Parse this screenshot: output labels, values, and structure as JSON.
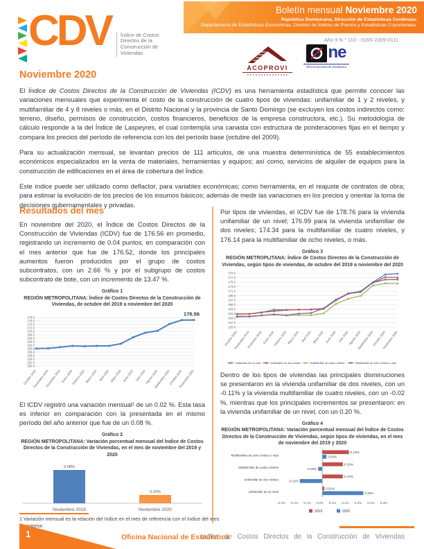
{
  "header": {
    "logo": {
      "acronym_rest": "CDV",
      "tagline": [
        "Índice de Costos",
        "Directos de la",
        "Construcción de",
        "Viviendas"
      ]
    },
    "banner": {
      "title_light": "Boletín mensual ",
      "title_bold": "Noviembre 2020",
      "line2": "República Dominicana, Dirección de Estadísticas Continuas.",
      "line3": "Departamento de Estadísticas Económicas, División de Índices de Precios y Estadísticas Coyunturales."
    },
    "issue": "Año 9 N.° 110 - ISSN 2309-0111",
    "partners": {
      "acoprovi": "ACOPROVI",
      "one_wordmark": "ne",
      "one_caption": "Oficina Nacional de Estadística"
    }
  },
  "doc": {
    "month_heading": "Noviembre 2020",
    "intro_p1_prefix": "El ",
    "intro_p1_italic": "Índice de Costos Directos de la Construcción de Viviendas (ICDV)",
    "intro_p1_rest": " es una herramienta estadística que permite conocer las variaciones mensuales que experimenta el costo de la construcción de cuatro tipos de viviendas: unifamiliar de 1 y 2 niveles, y multifamiliar de 4 y 8 niveles o más, en el Distrito Nacional y la provincia de Santo Domingo (se excluyen los costos indirectos como: terreno, diseño, permisos de construcción, costos financieros, beneficios de la empresa constructora, etc.). Su metodología de cálculo responde a la del Índice de Laspeyres, el cual contempla una canasta con estructura de ponderaciones fijas en el tiempo y compara los precios del período de referencia con los del período base (octubre del 2009).",
    "intro_p2": "Para su actualización mensual, se levantan precios de 111 artículos, de una muestra determinística de 55 establecimientos económicos especializados en la venta de materiales, herramientas y equipos; así como, servicios de alquiler de equipos para la construcción de edificaciones en el área de cobertura del Índice.",
    "intro_p3": "Este índice puede ser utilizado como deflactor, para variables económicas; como herramienta, en el reajuste de contratos de obra; para estimar la evolución de los precios de los insumos básicos; además de medir las variaciones en los precios y orientar la toma de decisiones gubernamentales y privadas.",
    "results_heading": "Resultados del mes",
    "left_p1": "En noviembre del 2020, el Índice de Costos Directos de la Construcción de Viviendas (ICDV) fue de 176.56 en promedio, registrando un incremento de 0.04 puntos, en comparación con el mes anterior que fue de 176.52, donde los principales aumentos fueron producidos por el grupo de costos subcontratos, con un 2.66 % y por el subgrupo de costos subcontrato de bote, con un incremento de 13.47 %.",
    "left_p2": "El ICDV registró una variación mensual¹ de un 0.02 %. Esta tasa es inferior en comparación con la presentada en el mismo período del año anterior que fue de un 0.08 %.",
    "right_p1": "Por tipos de viviendas, el ICDV fue de 178.76 para la vivienda unifamiliar de un nivel; 176.99 para la vivienda unifamiliar de dos niveles; 174.34 para la multifamiliar de cuatro niveles, y 176.14 para la multifamiliar de ocho niveles, o más.",
    "right_p2": "Dentro de los tipos de viviendas las principales disminuciones se presentaron en la vivienda unifamiliar de dos niveles, con un -0.11% y la vivienda multifamiliar de cuatro niveles, con un -0.02 %, mientras que los principales incrementos se presentaron: en la vivienda unifamiliar de un nivel, con un 0.20 %.",
    "footnote": "1  Variación mensual es la relación del índice en el mes de referencia con el índice del mes anterior."
  },
  "footer": {
    "page_number": "1",
    "left_text": "Oficina Nacional de Estadística",
    "right_text": "índice de Costos Directos de la Construcción de Viviendas"
  },
  "colors": {
    "accent": "#F47B20",
    "chart_blue": "#4F81BD",
    "chart_orange": "#F79646",
    "chart_red": "#C0504D",
    "chart_green": "#9BBB59",
    "chart_purple": "#8064A2"
  },
  "chart_data": [
    {
      "id": "chart1",
      "type": "line",
      "caption": "Gráfico 1",
      "title": "REGIÓN METROPOLITANA: Índice de Costos Directos de la Construcción de Viviendas, de octubre del 2019 a noviembre del 2020",
      "categories": [
        "Octubre 2019",
        "Noviembre 2019",
        "Diciembre 2019",
        "Enero 2020",
        "Febrero 2020",
        "Marzo 2020",
        "Abril 2020",
        "Mayo 2020",
        "Junio 2020",
        "Julio 2020",
        "Agosto 2020",
        "Septiembre 2020",
        "Octubre 2020",
        "Noviembre 2020"
      ],
      "series": [
        {
          "name": "ICDV",
          "color": "#4F81BD",
          "values": [
            160.1,
            160.2,
            160.9,
            161.6,
            161.4,
            161.6,
            161.6,
            162.9,
            166.6,
            169.2,
            170.3,
            174.3,
            176.5,
            176.56
          ]
        }
      ],
      "ylim": [
        150,
        178
      ],
      "ystep": 2,
      "last_point_label": "176.56",
      "legend_position": "none",
      "grid": true
    },
    {
      "id": "chart2",
      "type": "bar",
      "caption": "Gráfico 2",
      "title": "REGIÓN METROPOLITANA: Variación porcentual mensual del Índice de Costos Directos de la Construcción de Viviendas, en el mes de noviembre del 2019 y 2020",
      "categories": [
        "Noviembre 2019",
        "Noviembre 2020"
      ],
      "values": [
        0.08,
        0.02
      ],
      "value_labels": [
        "0.08%",
        "0.02%"
      ],
      "colors": [
        "#4F81BD",
        "#F79646"
      ],
      "ylim": [
        0,
        0.09
      ]
    },
    {
      "id": "chart3",
      "type": "line",
      "caption": "Gráfico 3",
      "title": "REGIÓN METROPLITANA: Índice de Costos Directos de la Construcción de Viviendas, según tipos de viviendas, de octubre del 2019 a noviembre del 2020",
      "categories": [
        "Octubre 2019",
        "Noviembre 2019",
        "Diciembre 2019",
        "Enero 2020",
        "Febrero 2020",
        "Marzo 2020",
        "Abril 2020",
        "Mayo 2020",
        "Junio 2020",
        "Julio 2020",
        "Agosto 2020",
        "Septiembre 2020",
        "Octubre 2020",
        "Noviembre 2020"
      ],
      "series": [
        {
          "name": "Unifamiliar de un nivel",
          "color": "#4F81BD",
          "values": [
            160.9,
            160.9,
            161.5,
            162.8,
            162.7,
            162.8,
            162.9,
            163.3,
            167.2,
            170.0,
            170.9,
            175.0,
            178.4,
            178.76
          ]
        },
        {
          "name": "Unifamiliar de dos niveles",
          "color": "#C0504D",
          "values": [
            160.8,
            160.9,
            161.6,
            162.1,
            162.6,
            162.8,
            162.8,
            163.1,
            166.9,
            169.8,
            170.8,
            174.7,
            177.2,
            176.99
          ]
        },
        {
          "name": "Multifamiliar de cuatro niveles",
          "color": "#9BBB59",
          "values": [
            159.9,
            159.9,
            160.3,
            160.5,
            160.2,
            160.4,
            160.3,
            161.1,
            165.3,
            167.6,
            168.9,
            173.5,
            174.4,
            174.34
          ]
        },
        {
          "name": "Multifamiliar de ocho niveles o más",
          "color": "#8064A2",
          "values": [
            159.6,
            159.7,
            160.2,
            160.7,
            160.3,
            161.0,
            161.3,
            163.3,
            167.2,
            169.9,
            170.6,
            174.8,
            176.1,
            176.14
          ]
        }
      ],
      "ylim": [
        155,
        179
      ],
      "ystep": 2,
      "legend_position": "bottom",
      "grid": true
    },
    {
      "id": "chart4",
      "type": "hbar",
      "caption": "Gráfico 4",
      "title": "REGIÓN METROPOLITANA: Variación porcentual mensual del Índice de Costos Directos de la Construcción de Viviendas, según tipos de viviendas, en el mes de noviembre del 2019 y 2020",
      "categories": [
        "Multifamiliar de ocho niveles o más",
        "Multifamiliar de cuatro niveles",
        "Unifamiliar de dos niveles",
        "Unifamiliar de un nivel"
      ],
      "series": [
        {
          "name": "2019",
          "color": "#C0504D",
          "values": [
            0.13,
            0.1,
            0.1,
            0.01
          ]
        },
        {
          "name": "2020",
          "color": "#4F81BD",
          "values": [
            0.02,
            -0.02,
            -0.11,
            0.2
          ]
        }
      ],
      "xlim": [
        -0.2,
        0.3
      ],
      "xtick_labels": [
        "-0.2%",
        "-0.1%",
        "-0.1%",
        "0.0%",
        "0.1%",
        "0.1%",
        "0.2%",
        "0.2%",
        "0.3%"
      ],
      "legend_position": "bottom"
    }
  ]
}
